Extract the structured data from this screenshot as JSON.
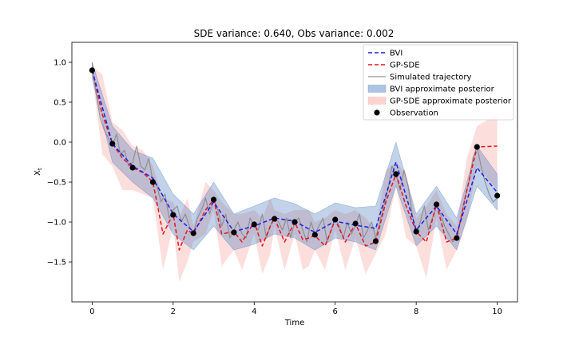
{
  "chart_data": {
    "type": "line",
    "title": "SDE variance: 0.640, Obs variance: 0.002",
    "xlabel": "Time",
    "ylabel": "X_t",
    "xlim": [
      -0.5,
      10.5
    ],
    "ylim": [
      -2.0,
      1.25
    ],
    "xticks": [
      0,
      2,
      4,
      6,
      8,
      10
    ],
    "yticks": [
      -1.5,
      -1.0,
      -0.5,
      0.0,
      0.5,
      1.0
    ],
    "xtick_labels": [
      "0",
      "2",
      "4",
      "6",
      "8",
      "10"
    ],
    "ytick_labels": [
      "−1.5",
      "−1.0",
      "−0.5",
      "0.0",
      "0.5",
      "1.0"
    ],
    "grid": false,
    "legend_position": "top-right",
    "colors": {
      "bvi": "#1f1fe0",
      "gpsde": "#e8141e",
      "trajectory": "#7f7f7f",
      "bvi_band": "#4c7ebf",
      "gpsde_band": "#f7a09a",
      "observation": "#000000"
    },
    "series": [
      {
        "name": "BVI",
        "style": "dashed",
        "x": [
          0,
          0.5,
          1.0,
          1.5,
          2.0,
          2.5,
          3.0,
          3.5,
          4.0,
          4.5,
          5.0,
          5.5,
          6.0,
          6.5,
          7.0,
          7.5,
          8.0,
          8.5,
          9.0,
          9.5,
          10.0
        ],
        "y": [
          0.9,
          -0.02,
          -0.3,
          -0.45,
          -0.9,
          -1.12,
          -0.75,
          -1.12,
          -1.05,
          -0.95,
          -0.99,
          -1.13,
          -0.99,
          -1.04,
          -1.08,
          -0.25,
          -1.1,
          -0.8,
          -1.15,
          -0.32,
          -0.63
        ]
      },
      {
        "name": "GP-SDE",
        "style": "dashed",
        "x": [
          0,
          0.25,
          0.5,
          0.75,
          1.0,
          1.25,
          1.5,
          1.75,
          2.0,
          2.15,
          2.35,
          2.5,
          2.8,
          3.0,
          3.2,
          3.5,
          3.7,
          4.0,
          4.2,
          4.4,
          4.5,
          4.75,
          5.0,
          5.2,
          5.35,
          5.5,
          5.75,
          6.0,
          6.25,
          6.5,
          6.75,
          7.0,
          7.25,
          7.5,
          7.75,
          8.0,
          8.25,
          8.5,
          8.75,
          9.0,
          9.25,
          9.5,
          10.0
        ],
        "y": [
          0.9,
          0.35,
          -0.02,
          -0.2,
          -0.32,
          -0.38,
          -0.5,
          -1.15,
          -0.9,
          -1.35,
          -1.1,
          -1.15,
          -0.85,
          -0.72,
          -1.15,
          -1.12,
          -1.25,
          -1.0,
          -1.3,
          -1.05,
          -0.95,
          -1.25,
          -1.0,
          -1.22,
          -1.2,
          -1.17,
          -1.3,
          -0.97,
          -1.25,
          -1.02,
          -1.3,
          -1.25,
          -0.75,
          -0.4,
          -0.8,
          -1.12,
          -1.25,
          -0.78,
          -1.25,
          -1.2,
          -0.6,
          -0.06,
          -0.05
        ]
      },
      {
        "name": "Simulated trajectory",
        "style": "solid",
        "x": [
          0,
          0.1,
          0.2,
          0.3,
          0.4,
          0.5,
          0.6,
          0.7,
          0.8,
          0.9,
          1.0,
          1.1,
          1.2,
          1.3,
          1.4,
          1.5,
          1.6,
          1.7,
          1.8,
          1.9,
          2.0,
          2.1,
          2.2,
          2.3,
          2.4,
          2.5,
          2.6,
          2.7,
          2.8,
          2.9,
          3.0,
          3.1,
          3.2,
          3.3,
          3.4,
          3.5,
          3.6,
          3.7,
          3.8,
          3.9,
          4.0,
          4.1,
          4.2,
          4.3,
          4.4,
          4.5,
          4.6,
          4.7,
          4.8,
          4.9,
          5.0,
          5.1,
          5.2,
          5.3,
          5.4,
          5.5,
          5.6,
          5.7,
          5.8,
          5.9,
          6.0,
          6.1,
          6.2,
          6.3,
          6.4,
          6.5,
          6.6,
          6.7,
          6.8,
          6.9,
          7.0,
          7.1,
          7.2,
          7.3,
          7.4,
          7.5,
          7.6,
          7.7,
          7.8,
          7.9,
          8.0,
          8.1,
          8.2,
          8.3,
          8.4,
          8.5,
          8.6,
          8.7,
          8.8,
          8.9,
          9.0,
          9.1,
          9.2,
          9.3,
          9.4,
          9.5,
          9.6,
          9.7,
          9.8,
          9.9,
          10.0
        ],
        "y": [
          1.0,
          0.6,
          0.3,
          0.15,
          0.05,
          -0.05,
          0.1,
          -0.15,
          -0.1,
          -0.3,
          -0.25,
          -0.05,
          -0.3,
          -0.35,
          -0.2,
          -0.5,
          -0.55,
          -0.75,
          -0.65,
          -0.95,
          -0.85,
          -0.8,
          -1.0,
          -0.9,
          -1.05,
          -1.15,
          -0.95,
          -0.85,
          -0.7,
          -0.9,
          -0.7,
          -0.85,
          -1.05,
          -0.9,
          -1.2,
          -1.1,
          -1.0,
          -1.15,
          -1.2,
          -0.95,
          -1.05,
          -1.1,
          -0.9,
          -1.2,
          -1.05,
          -0.95,
          -1.0,
          -1.1,
          -0.95,
          -1.2,
          -1.0,
          -0.95,
          -1.1,
          -1.25,
          -1.0,
          -1.15,
          -1.05,
          -0.95,
          -1.25,
          -1.1,
          -0.95,
          -1.05,
          -1.2,
          -1.0,
          -1.15,
          -1.05,
          -0.9,
          -1.2,
          -1.1,
          -1.0,
          -1.2,
          -1.0,
          -0.8,
          -0.6,
          -0.3,
          -0.4,
          -0.6,
          -0.35,
          -0.55,
          -0.9,
          -1.15,
          -1.0,
          -0.8,
          -1.1,
          -0.95,
          -0.8,
          -0.9,
          -1.05,
          -1.15,
          -1.25,
          -1.2,
          -0.95,
          -0.7,
          -0.5,
          -0.2,
          -0.05,
          -0.3,
          -0.5,
          -0.65,
          -0.75,
          -0.7
        ]
      }
    ],
    "bands": [
      {
        "name": "BVI approximate posterior",
        "x": [
          0,
          0.5,
          1.0,
          1.5,
          2.0,
          2.5,
          3.0,
          3.5,
          4.0,
          4.5,
          5.0,
          5.5,
          6.0,
          6.5,
          7.0,
          7.5,
          8.0,
          8.5,
          9.0,
          9.5,
          10.0
        ],
        "lower": [
          0.8,
          -0.25,
          -0.5,
          -0.7,
          -1.15,
          -1.35,
          -1.05,
          -1.35,
          -1.28,
          -1.15,
          -1.2,
          -1.35,
          -1.2,
          -1.25,
          -1.35,
          -0.55,
          -1.3,
          -1.05,
          -1.35,
          -0.55,
          -0.85
        ],
        "upper": [
          1.0,
          0.2,
          -0.1,
          -0.2,
          -0.65,
          -0.9,
          -0.5,
          -0.9,
          -0.8,
          -0.7,
          -0.77,
          -0.9,
          -0.76,
          -0.82,
          -0.8,
          0.0,
          -0.9,
          -0.55,
          -0.95,
          -0.05,
          -0.4
        ]
      },
      {
        "name": "GP-SDE approximate posterior",
        "x": [
          0,
          0.25,
          0.5,
          0.75,
          1.0,
          1.25,
          1.5,
          1.75,
          2.0,
          2.15,
          2.35,
          2.5,
          2.8,
          3.0,
          3.2,
          3.5,
          3.7,
          4.0,
          4.2,
          4.4,
          4.5,
          4.75,
          5.0,
          5.2,
          5.35,
          5.5,
          5.75,
          6.0,
          6.25,
          6.5,
          6.75,
          7.0,
          7.25,
          7.5,
          7.75,
          8.0,
          8.25,
          8.5,
          8.75,
          9.0,
          9.25,
          9.5,
          10.0
        ],
        "lower": [
          0.85,
          -0.15,
          -0.3,
          -0.6,
          -0.6,
          -0.65,
          -0.7,
          -1.6,
          -1.05,
          -1.75,
          -1.5,
          -1.25,
          -1.15,
          -0.85,
          -1.55,
          -1.35,
          -1.6,
          -1.15,
          -1.65,
          -1.4,
          -1.05,
          -1.6,
          -1.15,
          -1.6,
          -1.55,
          -1.35,
          -1.6,
          -1.1,
          -1.6,
          -1.2,
          -1.65,
          -1.4,
          -1.15,
          -0.55,
          -1.2,
          -1.3,
          -1.7,
          -0.95,
          -1.6,
          -1.35,
          -1.0,
          -0.3,
          -0.6
        ],
        "upper": [
          0.95,
          0.85,
          0.25,
          0.15,
          -0.05,
          -0.1,
          -0.3,
          -0.7,
          -0.75,
          -0.95,
          -0.7,
          -1.05,
          -0.5,
          -0.6,
          -0.75,
          -0.9,
          -0.9,
          -0.85,
          -0.95,
          -0.7,
          -0.85,
          -0.9,
          -0.85,
          -0.85,
          -0.85,
          -1.0,
          -0.95,
          -0.85,
          -0.9,
          -0.85,
          -0.95,
          -1.1,
          -0.35,
          -0.25,
          -0.4,
          -0.95,
          -0.8,
          -0.6,
          -0.9,
          -1.05,
          -0.2,
          0.2,
          0.35
        ]
      }
    ],
    "observations": {
      "name": "Observation",
      "x": [
        0,
        0.5,
        1.0,
        1.5,
        2.0,
        2.5,
        3.0,
        3.5,
        4.0,
        4.5,
        5.0,
        5.5,
        6.0,
        6.5,
        7.0,
        7.5,
        8.0,
        8.5,
        9.0,
        9.5,
        10.0
      ],
      "y": [
        0.9,
        -0.02,
        -0.32,
        -0.5,
        -0.91,
        -1.14,
        -0.72,
        -1.13,
        -1.03,
        -0.96,
        -1.0,
        -1.16,
        -0.97,
        -1.02,
        -1.24,
        -0.4,
        -1.12,
        -0.78,
        -1.2,
        -0.06,
        -0.67
      ]
    },
    "legend": [
      {
        "label": "BVI",
        "kind": "dashed",
        "color": "#1f1fe0"
      },
      {
        "label": "GP-SDE",
        "kind": "dashed",
        "color": "#e8141e"
      },
      {
        "label": "Simulated trajectory",
        "kind": "line",
        "color": "#7f7f7f"
      },
      {
        "label": "BVI approximate posterior",
        "kind": "patch",
        "color": "#4c7ebf"
      },
      {
        "label": "GP-SDE approximate posterior",
        "kind": "patch",
        "color": "#f7a09a"
      },
      {
        "label": "Observation",
        "kind": "dot",
        "color": "#000000"
      }
    ]
  }
}
